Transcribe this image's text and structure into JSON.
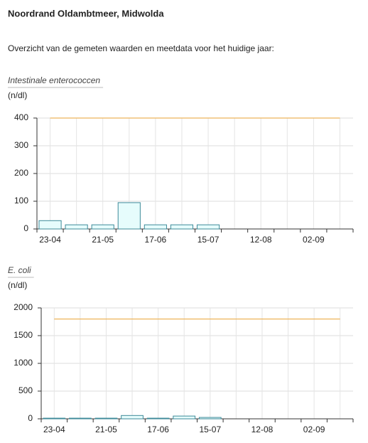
{
  "header": {
    "title": "Noordrand Oldambtmeer, Midwolda",
    "intro": "Overzicht van de gemeten waarden en meetdata voor het huidige jaar:"
  },
  "chart_data": [
    {
      "type": "bar",
      "title": "Intestinale enterococcen",
      "ylabel": "(n/dl)",
      "categories": [
        "23-04",
        null,
        "21-05",
        null,
        "17-06",
        null,
        "15-07",
        null,
        "12-08",
        null,
        "02-09",
        null
      ],
      "values": [
        30,
        15,
        15,
        95,
        15,
        15,
        15,
        null,
        null,
        null,
        null,
        null
      ],
      "color": "#e6fcfc",
      "edge_color": "#3d8a99",
      "reference_line": 400,
      "reference_color": "#eeb45a",
      "ylim": [
        0,
        400
      ],
      "yticks": [
        0,
        100,
        200,
        300,
        400
      ],
      "grid": true
    },
    {
      "type": "bar",
      "title": "E. coli",
      "ylabel": "(n/dl)",
      "categories": [
        "23-04",
        null,
        "21-05",
        null,
        "17-06",
        null,
        "15-07",
        null,
        "12-08",
        null,
        "02-09",
        null
      ],
      "values": [
        12,
        12,
        12,
        60,
        12,
        50,
        25,
        null,
        null,
        null,
        null,
        null
      ],
      "color": "#e6fcfc",
      "edge_color": "#3d8a99",
      "reference_line": 1800,
      "reference_color": "#eeb45a",
      "ylim": [
        0,
        2000
      ],
      "yticks": [
        0,
        500,
        1000,
        1500,
        2000
      ],
      "grid": true
    }
  ]
}
